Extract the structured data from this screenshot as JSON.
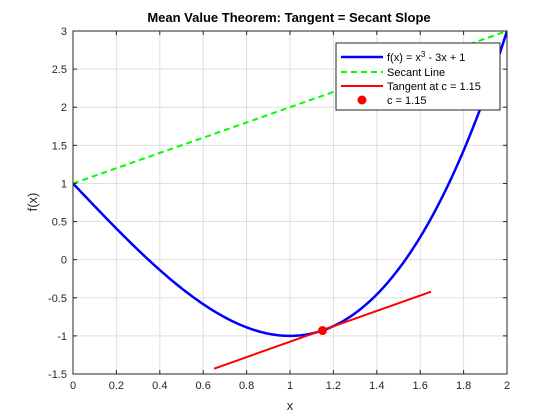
{
  "chart_data": {
    "type": "line",
    "title": "Mean Value Theorem: Tangent = Secant Slope",
    "xlabel": "x",
    "ylabel": "f(x)",
    "xlim": [
      0,
      2
    ],
    "ylim": [
      -1.5,
      3
    ],
    "xticks": [
      0,
      0.2,
      0.4,
      0.6,
      0.8,
      1,
      1.2,
      1.4,
      1.6,
      1.8,
      2
    ],
    "xtick_labels": [
      "0",
      "0.2",
      "0.4",
      "0.6",
      "0.8",
      "1",
      "1.2",
      "1.4",
      "1.6",
      "1.8",
      "2"
    ],
    "yticks": [
      -1.5,
      -1,
      -0.5,
      0,
      0.5,
      1,
      1.5,
      2,
      2.5,
      3
    ],
    "ytick_labels": [
      "-1.5",
      "-1",
      "-0.5",
      "0",
      "0.5",
      "1",
      "1.5",
      "2",
      "2.5",
      "3"
    ],
    "grid": true,
    "legend_position": "top-right",
    "series": [
      {
        "name": "f(x) = x³ - 3x + 1",
        "legend_main": "f(x) = x",
        "legend_sup": "3",
        "legend_rest": " - 3x + 1",
        "style": "solid",
        "color": "#0000ff",
        "x": [
          0,
          0.1,
          0.2,
          0.3,
          0.4,
          0.5,
          0.6,
          0.7,
          0.8,
          0.9,
          1.0,
          1.1,
          1.2,
          1.3,
          1.4,
          1.5,
          1.6,
          1.7,
          1.8,
          1.9,
          2.0
        ],
        "y": [
          1,
          0.701,
          0.408,
          0.127,
          -0.136,
          -0.375,
          -0.584,
          -0.757,
          -0.888,
          -0.971,
          -1,
          -0.969,
          -0.872,
          -0.703,
          -0.456,
          -0.125,
          0.296,
          0.813,
          1.432,
          2.159,
          3
        ]
      },
      {
        "name": "Secant Line",
        "style": "dashed",
        "color": "#00ff00",
        "x": [
          0,
          2
        ],
        "y": [
          1,
          3
        ]
      },
      {
        "name": "Tangent at c = 1.15",
        "style": "solid",
        "color": "#ff0000",
        "x": [
          0.65,
          1.65
        ],
        "y": [
          -1.43,
          -0.42
        ]
      },
      {
        "name": "c = 1.15",
        "style": "marker",
        "color": "#ff0000",
        "x": [
          1.15
        ],
        "y": [
          -0.93
        ]
      }
    ]
  }
}
